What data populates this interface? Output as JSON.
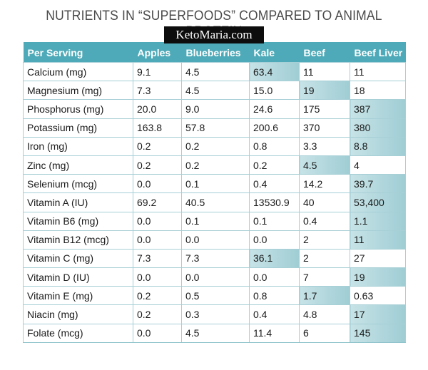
{
  "title": "NUTRIENTS IN “SUPERFOODS” COMPARED TO ANIMAL PROTEIN",
  "watermark": "KetoMaria.com",
  "colors": {
    "header": "#4eaab8",
    "highlight": "#b3d9df",
    "border": "#a7cfd6"
  },
  "table": {
    "headers": [
      "Per Serving",
      "Apples",
      "Blueberries",
      "Kale",
      "Beef",
      "Beef Liver"
    ],
    "rows": [
      {
        "cells": [
          "Calcium (mg)",
          "9.1",
          "4.5",
          "63.4",
          "11",
          "11"
        ],
        "highlight": [
          3
        ]
      },
      {
        "cells": [
          "Magnesium (mg)",
          "7.3",
          "4.5",
          "15.0",
          "19",
          "18"
        ],
        "highlight": [
          4
        ]
      },
      {
        "cells": [
          "Phosphorus (mg)",
          "20.0",
          "9.0",
          "24.6",
          "175",
          "387"
        ],
        "highlight": [
          5
        ]
      },
      {
        "cells": [
          "Potassium (mg)",
          "163.8",
          "57.8",
          "200.6",
          "370",
          "380"
        ],
        "highlight": [
          5
        ]
      },
      {
        "cells": [
          "Iron (mg)",
          "0.2",
          "0.2",
          "0.8",
          "3.3",
          "8.8"
        ],
        "highlight": [
          5
        ]
      },
      {
        "cells": [
          "Zinc (mg)",
          "0.2",
          "0.2",
          "0.2",
          "4.5",
          "4"
        ],
        "highlight": [
          4
        ]
      },
      {
        "cells": [
          "Selenium (mcg)",
          "0.0",
          "0.1",
          "0.4",
          "14.2",
          "39.7"
        ],
        "highlight": [
          5
        ]
      },
      {
        "cells": [
          "Vitamin A (IU)",
          "69.2",
          "40.5",
          "13530.9",
          "40",
          "53,400"
        ],
        "highlight": [
          5
        ]
      },
      {
        "cells": [
          "Vitamin B6 (mg)",
          "0.0",
          "0.1",
          "0.1",
          "0.4",
          "1.1"
        ],
        "highlight": [
          5
        ]
      },
      {
        "cells": [
          "Vitamin B12 (mcg)",
          "0.0",
          "0.0",
          "0.0",
          "2",
          "11"
        ],
        "highlight": [
          5
        ]
      },
      {
        "cells": [
          "Vitamin C (mg)",
          "7.3",
          "7.3",
          "36.1",
          "2",
          "27"
        ],
        "highlight": [
          3
        ]
      },
      {
        "cells": [
          "Vitamin D (IU)",
          "0.0",
          "0.0",
          "0.0",
          "7",
          "19"
        ],
        "highlight": [
          5
        ]
      },
      {
        "cells": [
          "Vitamin E (mg)",
          "0.2",
          "0.5",
          "0.8",
          "1.7",
          "0.63"
        ],
        "highlight": [
          4
        ]
      },
      {
        "cells": [
          "Niacin (mg)",
          "0.2",
          "0.3",
          "0.4",
          "4.8",
          "17"
        ],
        "highlight": [
          5
        ]
      },
      {
        "cells": [
          "Folate (mcg)",
          "0.0",
          "4.5",
          "11.4",
          "6",
          "145"
        ],
        "highlight": [
          5
        ]
      }
    ]
  }
}
